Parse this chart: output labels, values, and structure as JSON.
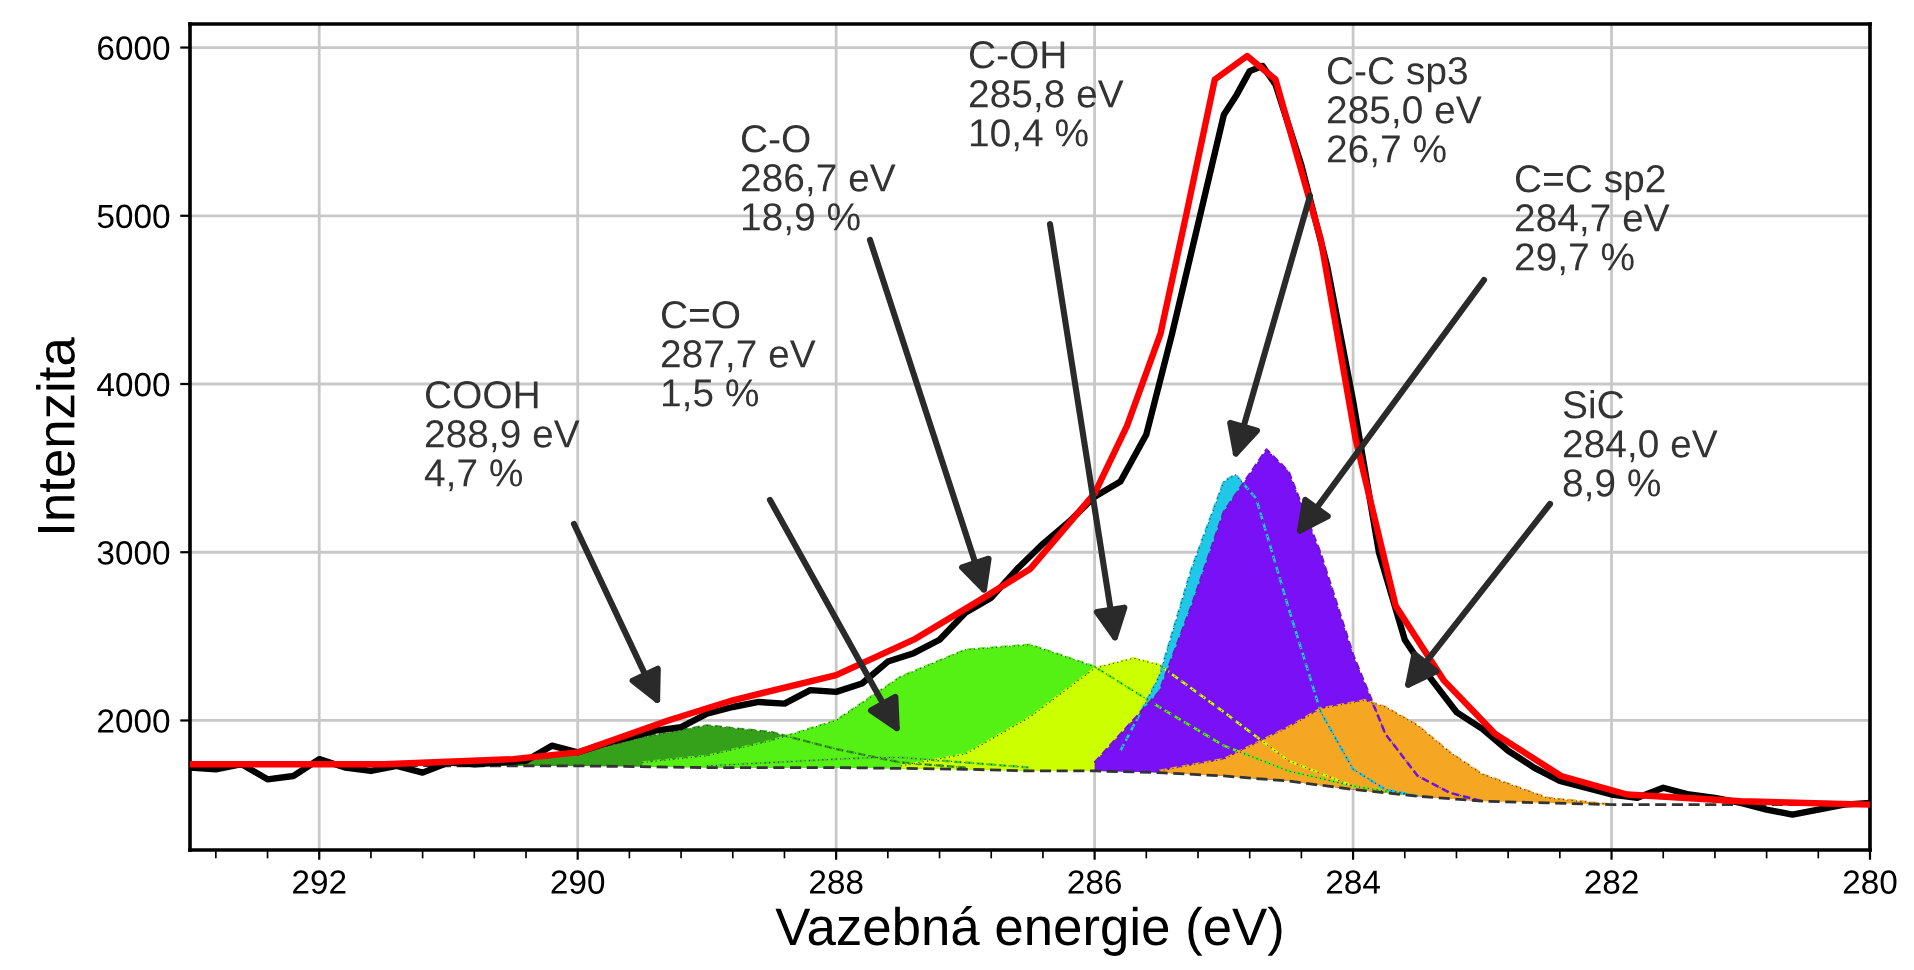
{
  "chart_data": {
    "type": "line",
    "xlabel": "Vazebná energie (eV)",
    "ylabel": "Intenzita",
    "xlim": [
      293,
      280
    ],
    "ylim": [
      1230,
      6140
    ],
    "xticks": [
      {
        "value": 292.8,
        "label": null
      },
      {
        "value": 292.4,
        "label": null
      },
      292,
      {
        "value": 291.6,
        "label": null
      },
      {
        "value": 291.2,
        "label": null
      },
      {
        "value": 290.8,
        "label": null
      },
      {
        "value": 290.4,
        "label": null
      },
      290,
      {
        "value": 289.6,
        "label": null
      },
      {
        "value": 289.2,
        "label": null
      },
      {
        "value": 288.8,
        "label": null
      },
      {
        "value": 288.4,
        "label": null
      },
      288,
      {
        "value": 287.6,
        "label": null
      },
      {
        "value": 287.2,
        "label": null
      },
      {
        "value": 286.8,
        "label": null
      },
      {
        "value": 286.4,
        "label": null
      },
      286,
      {
        "value": 285.6,
        "label": null
      },
      {
        "value": 285.2,
        "label": null
      },
      {
        "value": 284.8,
        "label": null
      },
      {
        "value": 284.4,
        "label": null
      },
      284,
      {
        "value": 283.6,
        "label": null
      },
      {
        "value": 283.2,
        "label": null
      },
      {
        "value": 282.8,
        "label": null
      },
      {
        "value": 282.4,
        "label": null
      },
      282,
      {
        "value": 281.6,
        "label": null
      },
      {
        "value": 281.2,
        "label": null
      },
      {
        "value": 280.8,
        "label": null
      },
      {
        "value": 280.4,
        "label": null
      },
      280
    ],
    "yticks": [
      2000,
      3000,
      4000,
      5000,
      6000
    ],
    "grid": true,
    "series": [
      {
        "line_style": "dashed",
        "color": "#333333",
        "x": [
          293,
          291,
          290,
          289,
          288,
          287,
          286.5,
          286,
          285.5,
          285,
          284.5,
          284,
          283.5,
          283,
          282.5,
          282,
          280
        ],
        "values": [
          1740,
          1730,
          1730,
          1720,
          1720,
          1710,
          1700,
          1700,
          1690,
          1670,
          1640,
          1590,
          1550,
          1520,
          1510,
          1500,
          1500
        ]
      },
      {
        "type": "area",
        "color": "#35a01a",
        "x": [
          291,
          290.5,
          290,
          289.5,
          289,
          288.5,
          288,
          287.5,
          287
        ],
        "values": [
          1740,
          1750,
          1800,
          1900,
          1970,
          1930,
          1830,
          1750,
          1720
        ]
      },
      {
        "type": "area",
        "color": "#4cd62a",
        "x": [
          289,
          288.5,
          288,
          287.7,
          287.5,
          287,
          286.5
        ],
        "values": [
          1730,
          1750,
          1770,
          1780,
          1780,
          1750,
          1720
        ]
      },
      {
        "type": "area",
        "color": "#55f014",
        "x": [
          289.5,
          289,
          288.5,
          288,
          287.5,
          287,
          286.5,
          286,
          285.5,
          285,
          284.5,
          284,
          283.5
        ],
        "values": [
          1750,
          1790,
          1880,
          2000,
          2260,
          2420,
          2450,
          2320,
          2080,
          1850,
          1700,
          1610,
          1550
        ]
      },
      {
        "type": "area",
        "color": "#ccff00",
        "x": [
          287.5,
          287,
          286.5,
          286,
          285.7,
          285.5,
          285,
          284.5,
          284
        ],
        "values": [
          1730,
          1800,
          2020,
          2310,
          2370,
          2330,
          2050,
          1760,
          1610
        ]
      },
      {
        "type": "area",
        "color": "#1ec8e6",
        "x": [
          285.8,
          285.5,
          285.25,
          285,
          284.91,
          284.75,
          284.5,
          284.25,
          284,
          283.75,
          283.5
        ],
        "values": [
          1820,
          2260,
          2900,
          3420,
          3460,
          3320,
          2670,
          2050,
          1710,
          1590,
          1550
        ]
      },
      {
        "type": "area",
        "color": "#7a10f5",
        "x": [
          286,
          285.5,
          285.25,
          285,
          284.67,
          284.5,
          284.25,
          284,
          283.75,
          283.5,
          283.25,
          283
        ],
        "values": [
          1750,
          2170,
          2680,
          3240,
          3610,
          3480,
          2990,
          2390,
          1920,
          1670,
          1570,
          1520
        ]
      },
      {
        "type": "area",
        "color": "#f5a623",
        "x": [
          285.5,
          285,
          284.5,
          284.25,
          283.91,
          283.75,
          283.5,
          283.25,
          283,
          282.5,
          282
        ],
        "values": [
          1700,
          1770,
          1960,
          2070,
          2120,
          2080,
          1970,
          1810,
          1680,
          1540,
          1500
        ]
      },
      {
        "color": "#000000",
        "x": [
          293,
          292.8,
          292.6,
          292.4,
          292.2,
          292,
          291.8,
          291.6,
          291.4,
          291.2,
          291,
          290.8,
          290.6,
          290.4,
          290.2,
          290,
          289.8,
          289.6,
          289.4,
          289.2,
          289,
          288.8,
          288.6,
          288.4,
          288.2,
          288,
          287.8,
          287.6,
          287.4,
          287.2,
          287,
          286.8,
          286.6,
          286.4,
          286.2,
          286,
          285.8,
          285.6,
          285.4,
          285.2,
          285,
          284.9,
          284.8,
          284.7,
          284.6,
          284.4,
          284.2,
          284,
          283.8,
          283.6,
          283.4,
          283.2,
          283,
          282.8,
          282.6,
          282.4,
          282.2,
          282,
          281.8,
          281.6,
          281.4,
          281.2,
          281,
          280.8,
          280.6,
          280.4,
          280.2,
          280
        ],
        "values": [
          1720,
          1710,
          1740,
          1650,
          1670,
          1770,
          1720,
          1700,
          1730,
          1690,
          1750,
          1740,
          1750,
          1760,
          1850,
          1810,
          1860,
          1900,
          1940,
          1960,
          2040,
          2080,
          2110,
          2100,
          2180,
          2170,
          2220,
          2350,
          2400,
          2480,
          2640,
          2730,
          2900,
          3050,
          3180,
          3330,
          3420,
          3700,
          4300,
          4950,
          5600,
          5720,
          5860,
          5890,
          5780,
          5300,
          4700,
          3900,
          3000,
          2480,
          2250,
          2050,
          1950,
          1820,
          1720,
          1640,
          1600,
          1560,
          1540,
          1600,
          1560,
          1540,
          1510,
          1470,
          1440,
          1470,
          1500,
          1510
        ]
      },
      {
        "color": "#ff0000",
        "x": [
          293,
          291.5,
          290.5,
          290,
          289.3,
          288.8,
          288,
          287.4,
          286.9,
          286.5,
          286,
          285.75,
          285.49,
          285.29,
          285.07,
          284.82,
          284.6,
          284.25,
          283.98,
          283.67,
          283.3,
          282.9,
          282.39,
          281.88,
          281,
          280
        ],
        "values": [
          1740,
          1740,
          1770,
          1810,
          2000,
          2120,
          2270,
          2480,
          2710,
          2900,
          3350,
          3750,
          4300,
          5010,
          5810,
          5950,
          5810,
          4860,
          3670,
          2680,
          2240,
          1920,
          1670,
          1560,
          1520,
          1500
        ]
      }
    ],
    "annotations": [
      "COOH\n288,9 eV\n4,7 %",
      "C=O\n287,7 eV\n1,5 %",
      {
        "text": "C-O\n286,7 eV\n18,9 %",
        "x": 286.84,
        "y": 2740
      },
      "C-OH\n285,8 eV\n10,4 %",
      "C-C sp3\n285,0 eV\n26,7 %",
      "C=C sp2\n284,7 eV\n29,7 %",
      "SiC\n284,0 eV\n8,9 %"
    ]
  }
}
